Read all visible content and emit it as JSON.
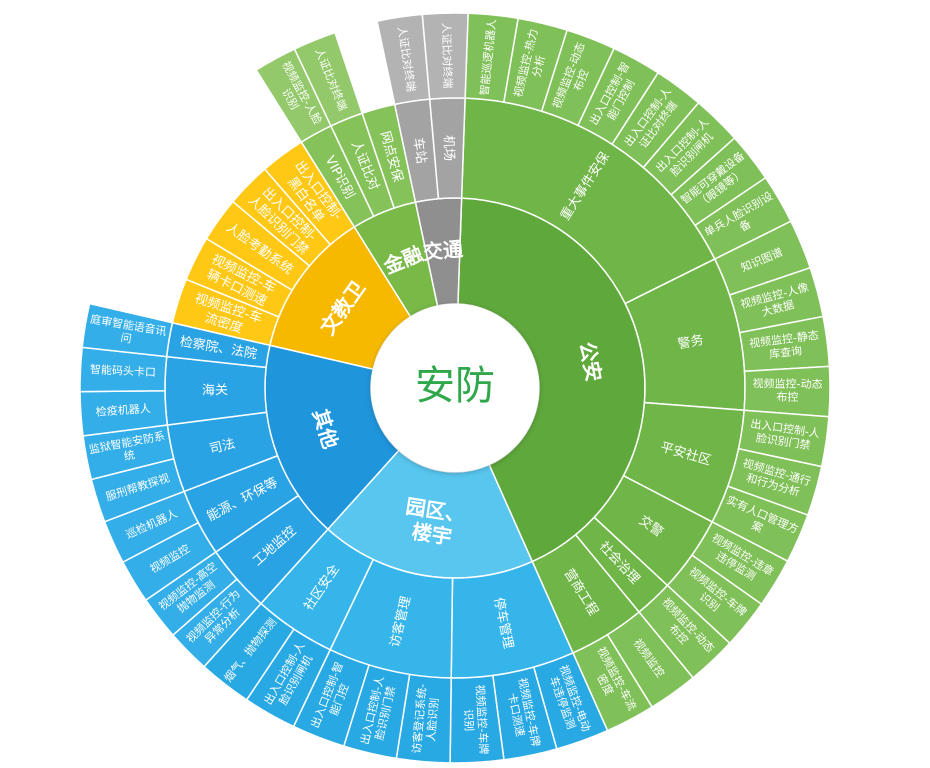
{
  "center": "安防",
  "sectors": [
    {
      "label": "公安",
      "children": [
        {
          "label": "重大事件安保",
          "children": [
            {
              "label": "智能巡逻机器人"
            },
            {
              "label": "视频监控-热力分析"
            },
            {
              "label": "视频监控-动态布控"
            },
            {
              "label": "出入口控制-智能门控制"
            },
            {
              "label": "出入口控制-人证比对终端"
            },
            {
              "label": "出入口控制-人脸识别闸机"
            },
            {
              "label": "智能可穿戴设备（眼镜等）"
            },
            {
              "label": "单兵人脸识别设备"
            }
          ]
        },
        {
          "label": "警务",
          "children": [
            {
              "label": "知识图谱"
            },
            {
              "label": "视频监控-人像大数据"
            },
            {
              "label": "视频监控-静态库查询"
            },
            {
              "label": "视频监控-动态布控"
            }
          ]
        },
        {
          "label": "平安社区",
          "children": [
            {
              "label": "出入口控制-人脸识别门禁"
            },
            {
              "label": "视频监控-通行和行为分析"
            },
            {
              "label": "实有人口管理方案"
            }
          ]
        },
        {
          "label": "交警",
          "children": [
            {
              "label": "视频监控-违章违停监测"
            },
            {
              "label": "视频监控-车牌识别"
            }
          ]
        },
        {
          "label": "社会治理",
          "children": [
            {
              "label": "视频监控-动态布控"
            }
          ]
        },
        {
          "label": "营商工程",
          "children": [
            {
              "label": "视频监控"
            },
            {
              "label": "视频监控-车流密度"
            }
          ]
        }
      ]
    },
    {
      "label": "园区、楼宇",
      "children": [
        {
          "label": "停车管理",
          "children": [
            {
              "label": "视频监控-电动车违停监测"
            },
            {
              "label": "视频监控-车牌卡口测速"
            },
            {
              "label": "视频监控-车牌识别"
            }
          ]
        },
        {
          "label": "访客管理",
          "children": [
            {
              "label": "访客登记系统-人脸识别"
            },
            {
              "label": "出入口控制-人脸识别门禁"
            },
            {
              "label": "出入口控制-智能门控"
            }
          ]
        },
        {
          "label": "社区安全",
          "children": [
            {
              "label": "出入口控制-人脸识别闸机"
            },
            {
              "label": "烟气、抛物探测"
            }
          ]
        }
      ]
    },
    {
      "label": "其他",
      "children": [
        {
          "label": "工地监控",
          "children": [
            {
              "label": "视频监控-行为异常分析"
            },
            {
              "label": "视频监控-高空抛物监测"
            }
          ]
        },
        {
          "label": "能源、环保等",
          "children": [
            {
              "label": "视频监控"
            },
            {
              "label": "巡检机器人"
            }
          ]
        },
        {
          "label": "司法",
          "children": [
            {
              "label": "服刑帮教探视"
            },
            {
              "label": "监狱智能安防系统"
            }
          ]
        },
        {
          "label": "海关",
          "children": [
            {
              "label": "检疫机器人"
            },
            {
              "label": "智能码头卡口"
            }
          ]
        },
        {
          "label": "检察院、法院",
          "children": [
            {
              "label": "庭审智能语音讯问"
            }
          ]
        }
      ]
    },
    {
      "label": "文教卫",
      "children": [
        {
          "label": "视频监控-车流密度"
        },
        {
          "label": "视频监控-车辆卡口测速"
        },
        {
          "label": "人脸考勤系统"
        },
        {
          "label": "出入口控制-人脸识别门禁"
        },
        {
          "label": "出入口控制-黑白名单"
        }
      ]
    },
    {
      "label": "金融",
      "children": [
        {
          "label": "VIP识别",
          "children": [
            {
              "label": "视频监控-人脸识别"
            }
          ]
        },
        {
          "label": "人证比对",
          "children": [
            {
              "label": "人证比对终端"
            }
          ]
        },
        {
          "label": "网点安保"
        }
      ]
    },
    {
      "label": "交通",
      "children": [
        {
          "label": "车站",
          "children": [
            {
              "label": "人证比对终端"
            }
          ]
        },
        {
          "label": "机场",
          "children": [
            {
              "label": "人证比对终端"
            }
          ]
        }
      ]
    }
  ]
}
